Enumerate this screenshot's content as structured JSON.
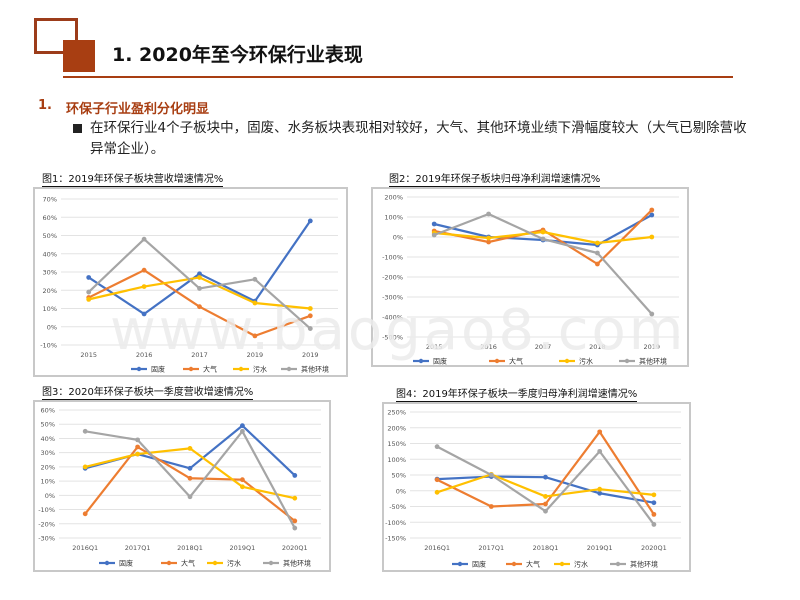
{
  "header": {
    "title": "1. 2020年至今环保行业表现"
  },
  "section": {
    "number": "1.",
    "title": "环保子行业盈利分化明显"
  },
  "bullet": {
    "text": "在环保行业4个子板块中，固废、水务板块表现相对较好，大气、其他环境业绩下滑幅度较大（大气已剔除营收异常企业）。"
  },
  "watermark": "www.baogao8.com",
  "colors": {
    "固废": "#4472c4",
    "大气": "#ed7d31",
    "污水": "#ffc000",
    "其他环境": "#a5a5a5"
  },
  "chart_data": [
    {
      "caption": "图1：2019年环保子板块营收增速情况%",
      "type": "line",
      "categories": [
        "2015",
        "2016",
        "2017",
        "2019",
        "2019"
      ],
      "ylim": [
        -10,
        70
      ],
      "ystep": 10,
      "tick_suffix": "%",
      "series": [
        {
          "name": "固废",
          "values": [
            27,
            7,
            29,
            14,
            58
          ]
        },
        {
          "name": "大气",
          "values": [
            16,
            31,
            11,
            -5,
            6
          ]
        },
        {
          "name": "污水",
          "values": [
            15,
            22,
            27,
            13,
            10
          ]
        },
        {
          "name": "其他环境",
          "values": [
            19,
            48,
            21,
            26,
            -1
          ]
        }
      ]
    },
    {
      "caption": "图2：2019年环保子板块归母净利润增速情况%",
      "type": "line",
      "categories": [
        "2015",
        "2016",
        "2017",
        "2018",
        "2019"
      ],
      "ylim": [
        -500,
        200
      ],
      "ystep": 100,
      "tick_suffix": "%",
      "series": [
        {
          "name": "固废",
          "values": [
            65,
            0,
            -15,
            -40,
            110
          ]
        },
        {
          "name": "大气",
          "values": [
            30,
            -25,
            35,
            -135,
            135
          ]
        },
        {
          "name": "污水",
          "values": [
            20,
            -5,
            25,
            -30,
            0
          ]
        },
        {
          "name": "其他环境",
          "values": [
            10,
            115,
            -10,
            -80,
            -385
          ]
        }
      ]
    },
    {
      "caption": "图3：2020年环保子板块一季度营收增速情况%",
      "type": "line",
      "categories": [
        "2016Q1",
        "2017Q1",
        "2018Q1",
        "2019Q1",
        "2020Q1"
      ],
      "ylim": [
        -30,
        60
      ],
      "ystep": 10,
      "tick_suffix": "%",
      "series": [
        {
          "name": "固废",
          "values": [
            19,
            29,
            19,
            49,
            14
          ]
        },
        {
          "name": "大气",
          "values": [
            -13,
            34,
            12,
            11,
            -18
          ]
        },
        {
          "name": "污水",
          "values": [
            20,
            29,
            33,
            6,
            -2
          ]
        },
        {
          "name": "其他环境",
          "values": [
            45,
            39,
            -1,
            45,
            -23
          ]
        }
      ]
    },
    {
      "caption": "图4：2019年环保子板块一季度归母净利润增速情况%",
      "type": "line",
      "categories": [
        "2016Q1",
        "2017Q1",
        "2018Q1",
        "2019Q1",
        "2020Q1"
      ],
      "ylim": [
        -150,
        250
      ],
      "ystep": 50,
      "tick_suffix": "%",
      "series": [
        {
          "name": "固废",
          "values": [
            37,
            45,
            43,
            -8,
            -38
          ]
        },
        {
          "name": "大气",
          "values": [
            35,
            -50,
            -42,
            187,
            -75
          ]
        },
        {
          "name": "污水",
          "values": [
            -5,
            52,
            -18,
            5,
            -13
          ]
        },
        {
          "name": "其他环境",
          "values": [
            140,
            50,
            -65,
            125,
            -107
          ]
        }
      ]
    }
  ]
}
